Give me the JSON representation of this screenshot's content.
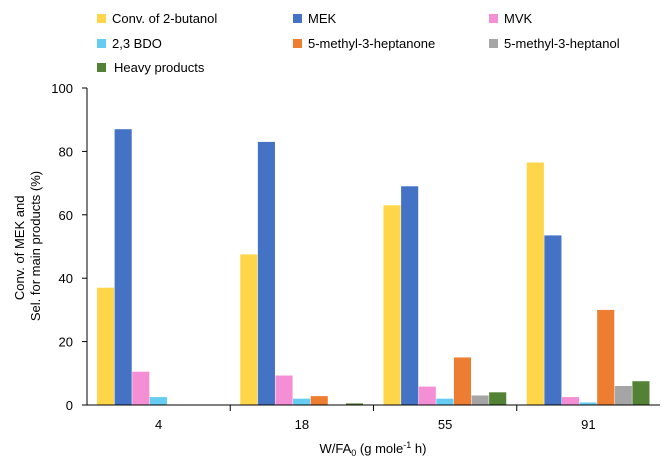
{
  "chart_data": {
    "type": "bar",
    "title": "",
    "xlabel_main": "W/FA",
    "xlabel_sub": "0",
    "xlabel_units": " (g mole",
    "xlabel_sup": "-1",
    "xlabel_end": " h)",
    "ylabel_line1": "Conv. of MEK and",
    "ylabel_line2": "Sel. for main products (%)",
    "ylim": [
      0,
      100
    ],
    "yticks": [
      0,
      20,
      40,
      60,
      80,
      100
    ],
    "categories": [
      "4",
      "18",
      "55",
      "91"
    ],
    "legend_position": "top",
    "series": [
      {
        "name": "Conv. of 2-butanol",
        "color": "#FFD54A",
        "values": [
          37,
          47.5,
          63,
          76.5
        ]
      },
      {
        "name": "MEK",
        "color": "#4472C4",
        "values": [
          87,
          83,
          69,
          53.5
        ]
      },
      {
        "name": "MVK",
        "color": "#F48FD6",
        "values": [
          10.5,
          9.3,
          5.8,
          2.5
        ]
      },
      {
        "name": "2,3 BDO",
        "color": "#66CCF2",
        "values": [
          2.5,
          2,
          2,
          0.8
        ]
      },
      {
        "name": "5-methyl-3-heptanone",
        "color": "#ED7D31",
        "values": [
          0,
          2.8,
          15,
          30
        ]
      },
      {
        "name": "5-methyl-3-heptanol",
        "color": "#A5A5A5",
        "values": [
          0,
          0,
          3,
          6
        ]
      },
      {
        "name": "Heavy products",
        "color": "#538135",
        "values": [
          0,
          0.5,
          4,
          7.5
        ]
      }
    ]
  }
}
